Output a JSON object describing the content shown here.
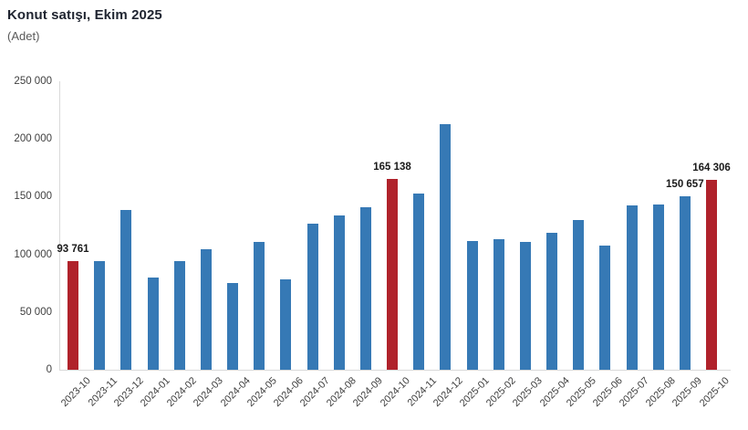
{
  "header": {
    "title": "Konut satışı, Ekim 2025",
    "subtitle": "(Adet)"
  },
  "chart_data": {
    "type": "bar",
    "title": "Konut satışı, Ekim 2025",
    "ylabel": "(Adet)",
    "xlabel": "",
    "grid": false,
    "legend": null,
    "ylim": [
      0,
      250000
    ],
    "ytick_step": 50000,
    "yticks": [
      "0",
      "50 000",
      "100 000",
      "150 000",
      "200 000",
      "250 000"
    ],
    "categories": [
      "2023-10",
      "2023-11",
      "2023-12",
      "2024-01",
      "2024-02",
      "2024-03",
      "2024-04",
      "2024-05",
      "2024-06",
      "2024-07",
      "2024-08",
      "2024-09",
      "2024-10",
      "2024-11",
      "2024-12",
      "2025-01",
      "2025-02",
      "2025-03",
      "2025-04",
      "2025-05",
      "2025-06",
      "2025-07",
      "2025-08",
      "2025-09",
      "2025-10"
    ],
    "values": [
      93761,
      93900,
      138500,
      80300,
      93900,
      104800,
      75100,
      110400,
      78300,
      126900,
      134000,
      141100,
      165138,
      153000,
      212700,
      111800,
      112800,
      110400,
      118500,
      129900,
      107500,
      142800,
      143500,
      150657,
      164306
    ],
    "annotations": [
      {
        "index": 0,
        "text": "93 761"
      },
      {
        "index": 12,
        "text": "165 138"
      },
      {
        "index": 23,
        "text": "150 657"
      },
      {
        "index": 24,
        "text": "164 306"
      }
    ],
    "highlight_indices": [
      0,
      12,
      24
    ],
    "colors": {
      "bar": "#3679b5",
      "highlight": "#b0222b",
      "axis_line": "#d9d9d9",
      "tick_text": "#404040",
      "value_label_text": "#1a1a1a",
      "title_text": "#1f2430",
      "subtitle_text": "#595959"
    }
  }
}
